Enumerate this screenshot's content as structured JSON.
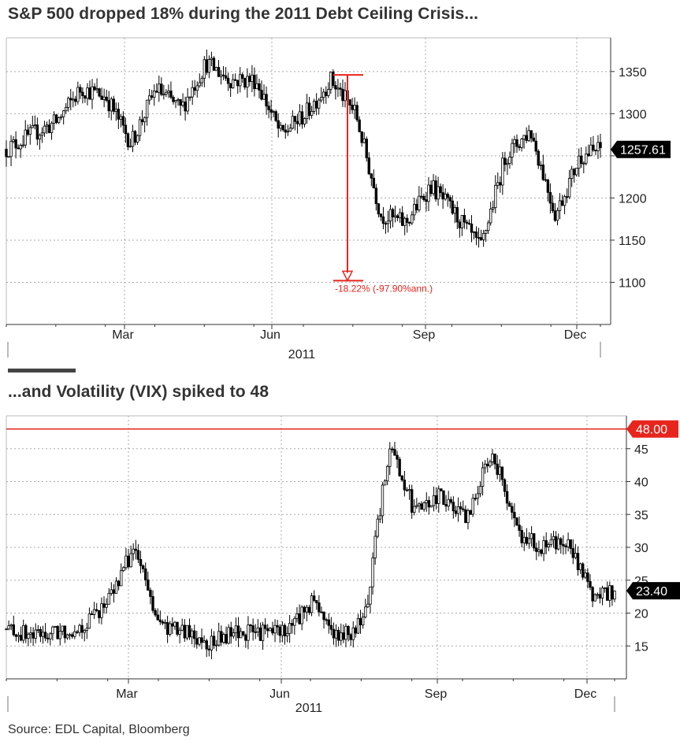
{
  "titles": {
    "top": "S&P 500 dropped 18% during the 2011 Debt Ceiling Crisis...",
    "bottom": "...and Volatility (VIX) spiked to 48"
  },
  "source": "Source: EDL Capital, Bloomberg",
  "colors": {
    "price": "#000000",
    "grid": "#aaaaaa",
    "annotation": "#e8251c",
    "last_value_bg": "#000000",
    "highlight_bg": "#e8251c"
  },
  "chart_data": [
    {
      "type": "line",
      "style": "candlestick",
      "x_year_label": "2011",
      "x_ticks": [
        "Mar",
        "Jun",
        "Sep",
        "Dec"
      ],
      "y_ticks": [
        1100,
        1150,
        1200,
        1250,
        1300,
        1350
      ],
      "y_tick_labels": [
        "1100",
        "1150",
        "1200",
        "",
        "1300",
        "1350"
      ],
      "ylim": [
        1050,
        1390
      ],
      "grid": true,
      "last_value": "1257.61",
      "annotation": {
        "label": "-18.22% (-97.90%ann.)",
        "from": 1346,
        "to": 1102
      },
      "x_months": [
        0,
        0.5,
        1,
        1.5,
        2,
        2.5,
        3,
        3.5,
        4,
        4.5,
        5,
        5.5,
        6,
        6.5,
        7,
        7.5,
        8,
        8.5,
        9,
        9.5,
        10,
        10.5,
        11,
        11.5,
        11.9
      ],
      "values": [
        1258,
        1275,
        1290,
        1330,
        1320,
        1265,
        1330,
        1305,
        1360,
        1340,
        1340,
        1275,
        1300,
        1340,
        1300,
        1180,
        1170,
        1215,
        1180,
        1140,
        1250,
        1280,
        1180,
        1250,
        1257.61
      ]
    },
    {
      "type": "line",
      "style": "candlestick",
      "x_year_label": "2011",
      "x_ticks": [
        "Mar",
        "Jun",
        "Sep",
        "Dec"
      ],
      "y_ticks": [
        15,
        20,
        25,
        30,
        35,
        40,
        45
      ],
      "y_tick_labels": [
        "15",
        "20",
        "25",
        "30",
        "35",
        "40",
        "45"
      ],
      "ylim": [
        10,
        50
      ],
      "grid": true,
      "last_value": "23.40",
      "highlight": {
        "value": 48,
        "label": "48.00"
      },
      "x_months": [
        0,
        0.5,
        1,
        1.5,
        2,
        2.5,
        3,
        3.5,
        4,
        4.5,
        5,
        5.5,
        6,
        6.5,
        7,
        7.5,
        8,
        8.5,
        9,
        9.5,
        10,
        10.5,
        11,
        11.5,
        11.9
      ],
      "values": [
        17.5,
        16.5,
        17,
        18,
        22,
        30,
        18,
        17,
        15.5,
        17,
        17,
        17.5,
        22,
        16,
        18.5,
        46,
        35,
        38,
        34,
        45,
        32,
        30,
        31,
        22,
        23.4
      ]
    }
  ]
}
